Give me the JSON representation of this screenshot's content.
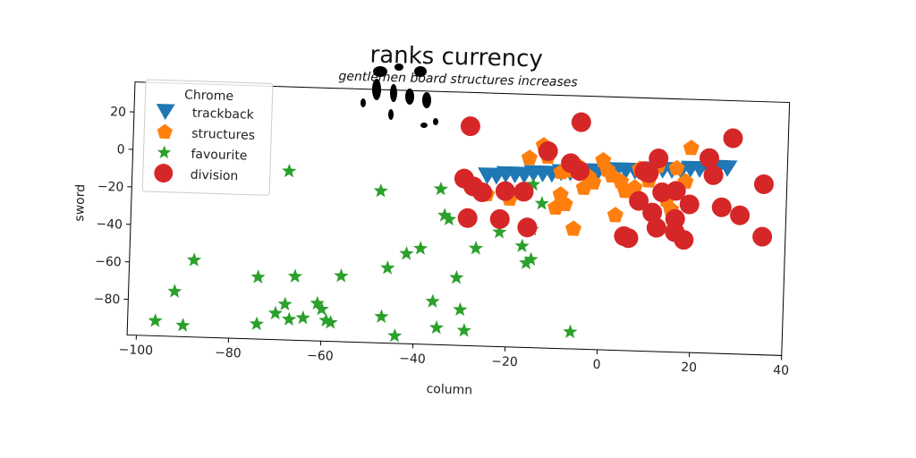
{
  "chart_data": {
    "type": "scatter",
    "title": "ranks currency",
    "subtitle": "gentlemen board structures increases",
    "xlabel": "column",
    "ylabel": "sword",
    "xlim": [
      -102,
      40
    ],
    "ylim": [
      -99,
      36
    ],
    "xticks": [
      -100,
      -80,
      -60,
      -40,
      -20,
      0,
      20,
      40
    ],
    "xtick_labels": [
      "−100",
      "−80",
      "−60",
      "−40",
      "−20",
      "0",
      "20",
      "40"
    ],
    "yticks": [
      20,
      0,
      -20,
      -40,
      -60,
      -80
    ],
    "ytick_labels": [
      "20",
      "0",
      "−20",
      "−40",
      "−60",
      "−80"
    ],
    "grid": false,
    "legend": {
      "title": "Chrome",
      "placement": "top-left"
    },
    "series": [
      {
        "name": "trackback",
        "marker": "triangle-down",
        "color": "#1f77b4",
        "x": [
          -25,
          -23,
          -21,
          -19,
          -17,
          -15,
          -13,
          -11,
          -9,
          -7,
          -5,
          -3,
          -1,
          1,
          3,
          5,
          7,
          9,
          11,
          13,
          15,
          17,
          19,
          21,
          23,
          25,
          27
        ],
        "y": [
          -8,
          -8,
          -7,
          -7,
          -7,
          -6,
          -6,
          -6,
          -5,
          -5,
          -5,
          -4,
          -4,
          -4,
          -3,
          -3,
          -3,
          -3,
          -2,
          -2,
          -2,
          -2,
          -1,
          -1,
          -1,
          0,
          0
        ]
      },
      {
        "name": "structures",
        "marker": "pentagon",
        "color": "#ff7f0e",
        "x": [
          -16,
          -13,
          -12,
          -9,
          -9,
          -8,
          -7,
          -5,
          -4,
          -3,
          -2,
          0,
          1,
          2,
          4,
          5,
          7,
          8,
          10,
          12,
          14,
          15,
          16,
          18,
          19,
          -25,
          -20,
          -10,
          -6,
          3
        ],
        "y": [
          2,
          9,
          3,
          -5,
          -17,
          -22,
          -4,
          -2,
          -13,
          -7,
          -10,
          2,
          -3,
          -6,
          -9,
          -14,
          -12,
          -2,
          -8,
          0,
          -18,
          -23,
          -1,
          -8,
          10,
          -18,
          -20,
          -24,
          -35,
          -27
        ]
      },
      {
        "name": "favourite",
        "marker": "star",
        "color": "#2ca02c",
        "x": [
          -68,
          -48,
          -35,
          -34,
          -33,
          -27,
          -22,
          -17,
          -16,
          -15,
          -15,
          -13,
          -6,
          -96,
          -92,
          -90,
          -88,
          -74,
          -74,
          -70,
          -68,
          -67,
          -66,
          -64,
          -61,
          -60,
          -59,
          -58,
          -56,
          -47,
          -46,
          -44,
          -42,
          -39,
          -36,
          -35,
          -31,
          -30,
          -29,
          -15
        ],
        "y": [
          -9,
          -18,
          -16,
          -30,
          -32,
          -47,
          -38,
          -45,
          -54,
          -52,
          -36,
          -22,
          -90,
          -91,
          -75,
          -93,
          -58,
          -66,
          -91,
          -85,
          -80,
          -88,
          -65,
          -87,
          -79,
          -82,
          -88,
          -89,
          -64,
          -85,
          -59,
          -95,
          -51,
          -48,
          -76,
          -90,
          -63,
          -80,
          -91,
          -12
        ]
      },
      {
        "name": "division",
        "marker": "circle",
        "color": "#d62728",
        "x": [
          -29,
          -5,
          28,
          -12,
          -30,
          -28,
          -26,
          -21,
          -17,
          -7,
          -5,
          9,
          10,
          12,
          13,
          16,
          19,
          23,
          24,
          26,
          30,
          35,
          -29,
          -22,
          -16,
          5,
          6,
          8,
          11,
          12,
          16,
          16,
          18,
          35
        ],
        "y": [
          18,
          22,
          16,
          6,
          -10,
          -14,
          -17,
          -16,
          -16,
          0,
          -4,
          -3,
          -4,
          4,
          -14,
          -13,
          -20,
          5,
          -4,
          -21,
          -25,
          -8,
          -31,
          -31,
          -35,
          -38,
          -39,
          -19,
          -25,
          -33,
          -28,
          -35,
          -39,
          -36
        ]
      }
    ]
  }
}
